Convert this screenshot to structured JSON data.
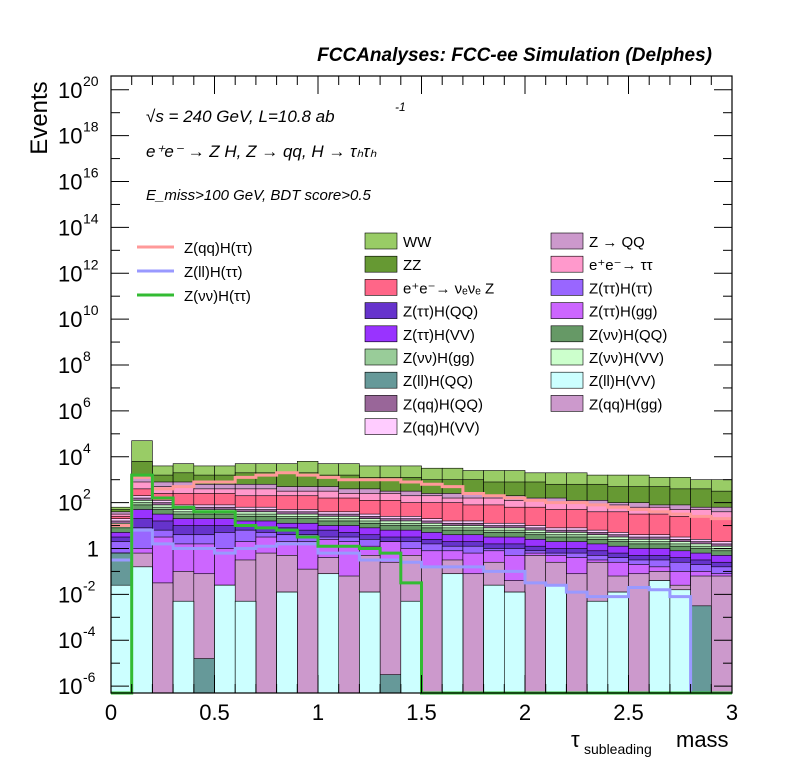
{
  "header": {
    "title": "FCCAnalyses: FCC-ee Simulation (Delphes)"
  },
  "annotations": {
    "line1": "√s = 240 GeV, L=10.8 ab",
    "line1_sup": "-1",
    "line2": "e⁺e⁻ → Z H, Z → qq, H → τₕτₕ",
    "line3": "E_miss>100 GeV, BDT score>0.5"
  },
  "colors": {
    "WW": "#99cc66",
    "ZZ": "#669933",
    "eeZ": "#ff6688",
    "Ztautau_Htautau": "#9966ff",
    "Ztautau_HQQ": "#6633cc",
    "Ztautau_Hgg": "#cc66ff",
    "Ztautau_HVV": "#9933ff",
    "Znunu_HQQ": "#669966",
    "Znunu_Hgg": "#99cc99",
    "Znunu_HVV": "#ccffcc",
    "Zll_HQQ": "#669999",
    "Zll_HVV": "#ccffff",
    "Zqq_HQQ": "#996699",
    "Zqq_Hgg": "#cc99cc",
    "Zqq_HVV": "#ffccff",
    "Z_QQ": "#cc99cc",
    "ee_tautau": "#ff99cc",
    "sig_qq": "#ff9999",
    "sig_ll": "#9999ff",
    "sig_nunu": "#33bb33"
  },
  "chart_data": {
    "type": "histogram-stacked",
    "xlabel": "τ_subleading mass",
    "xlabel_main": "τ",
    "xlabel_sub": "subleading",
    "xlabel_tail": "mass",
    "ylabel": "Events",
    "xlim": [
      0,
      3
    ],
    "ylim_log10": [
      -6.3,
      20.6
    ],
    "y_scale": "log",
    "x_ticks": [
      "0",
      "0.5",
      "1",
      "1.5",
      "2",
      "2.5",
      "3"
    ],
    "y_ticks": [
      {
        "base": "10",
        "exp": "20"
      },
      {
        "base": "10",
        "exp": "18"
      },
      {
        "base": "10",
        "exp": "16"
      },
      {
        "base": "10",
        "exp": "14"
      },
      {
        "base": "10",
        "exp": "12"
      },
      {
        "base": "10",
        "exp": "10"
      },
      {
        "base": "10",
        "exp": "8"
      },
      {
        "base": "10",
        "exp": "6"
      },
      {
        "base": "10",
        "exp": "4"
      },
      {
        "base": "10",
        "exp": "2"
      },
      {
        "base": "1",
        "exp": ""
      },
      {
        "base": "10",
        "exp": "-2"
      },
      {
        "base": "10",
        "exp": "-4"
      },
      {
        "base": "10",
        "exp": "-6"
      }
    ],
    "bin_edges": [
      0,
      0.1,
      0.2,
      0.3,
      0.4,
      0.5,
      0.6,
      0.7,
      0.8,
      0.9,
      1.0,
      1.1,
      1.2,
      1.3,
      1.4,
      1.5,
      1.6,
      1.7,
      1.8,
      1.9,
      2.0,
      2.1,
      2.2,
      2.3,
      2.4,
      2.5,
      2.6,
      2.7,
      2.8,
      2.9,
      3.0
    ],
    "stack_log10_tops": [
      {
        "name": "Z(ll)H(VV)",
        "color_key": "Zll_HVV",
        "values": [
          -1.6,
          -0.8,
          -6.5,
          -2.3,
          -6.5,
          -1.6,
          -2.3,
          -6.5,
          -1.9,
          -6.5,
          -1.1,
          -6.5,
          -1.9,
          -6.5,
          -2.3,
          -6.5,
          -1.1,
          -6.5,
          -1.6,
          -1.9,
          -6.5,
          -1.6,
          -6.5,
          -2.3,
          -1.9,
          -6.5,
          -1.4,
          -1.8,
          -6.5,
          -6.5
        ]
      },
      {
        "name": "Z(ll)H(QQ)",
        "color_key": "Zll_HQQ",
        "values": [
          -0.2,
          -0.8,
          -6.5,
          -2.3,
          -4.8,
          -1.6,
          -2.3,
          -6.5,
          -1.9,
          -6.5,
          -1.1,
          -6.5,
          -1.9,
          -5.5,
          -2.3,
          -6.5,
          -1.1,
          -6.5,
          -1.6,
          -1.9,
          -6.5,
          -1.6,
          -6.5,
          -2.3,
          -1.9,
          -6.5,
          -1.4,
          -1.8,
          -2.5,
          -6.5
        ]
      },
      {
        "name": "Z(qq)H(gg)",
        "color_key": "Zqq_Hgg",
        "values": [
          -0.2,
          -0.2,
          -1.5,
          -1.0,
          -1.1,
          -1.6,
          -0.5,
          -0.2,
          -0.3,
          -0.9,
          -0.4,
          -1.2,
          -0.3,
          -0.6,
          -0.3,
          -0.8,
          -0.5,
          -1.1,
          -0.6,
          -1.4,
          -0.3,
          -0.6,
          -1.1,
          -0.6,
          -1.2,
          -1.1,
          -1.0,
          -1.6,
          -1.2,
          -1.2
        ]
      },
      {
        "name": "Z(ττ)H(gg)",
        "color_key": "Ztautau_Hgg",
        "values": [
          -0.2,
          0.0,
          0.5,
          0.2,
          0.2,
          0.0,
          0.3,
          0.5,
          0.3,
          0.3,
          0.4,
          0.3,
          0.1,
          0.3,
          0.0,
          -0.1,
          -0.1,
          -0.2,
          -0.1,
          -0.3,
          -0.2,
          -0.3,
          -0.4,
          -0.5,
          -0.6,
          -0.7,
          -0.8,
          -1.0,
          -1.0,
          -1.1
        ]
      },
      {
        "name": "Z(ττ)H(ττ)",
        "color_key": "Ztautau_Htautau",
        "values": [
          0.3,
          0.9,
          0.8,
          0.6,
          0.6,
          0.7,
          0.8,
          0.7,
          0.6,
          0.6,
          0.5,
          0.5,
          0.4,
          0.3,
          0.3,
          0.2,
          0.1,
          0.1,
          0.0,
          0.0,
          -0.1,
          -0.2,
          -0.2,
          -0.3,
          -0.4,
          -0.5,
          -0.5,
          -0.6,
          -0.7,
          -0.8
        ]
      },
      {
        "name": "Z(ττ)H(QQ)",
        "color_key": "Ztautau_HQQ",
        "values": [
          0.5,
          1.3,
          1.2,
          1.0,
          1.0,
          1.0,
          1.0,
          0.9,
          0.9,
          0.8,
          0.8,
          0.7,
          0.6,
          0.5,
          0.5,
          0.4,
          0.3,
          0.3,
          0.2,
          0.2,
          0.1,
          0.0,
          0.0,
          -0.1,
          -0.2,
          -0.3,
          -0.3,
          -0.4,
          -0.5,
          -0.6
        ]
      },
      {
        "name": "Z(ττ)H(VV)",
        "color_key": "Ztautau_HVV",
        "values": [
          0.7,
          1.7,
          1.5,
          1.3,
          1.3,
          1.3,
          1.2,
          1.2,
          1.1,
          1.1,
          1.0,
          1.0,
          0.9,
          0.8,
          0.8,
          0.7,
          0.6,
          0.6,
          0.5,
          0.5,
          0.4,
          0.3,
          0.3,
          0.2,
          0.1,
          0.0,
          0.0,
          -0.1,
          -0.2,
          -0.3
        ]
      },
      {
        "name": "Z(νν)H(QQ)",
        "color_key": "Znunu_HQQ",
        "values": [
          0.9,
          1.9,
          1.7,
          1.5,
          1.5,
          1.5,
          1.4,
          1.4,
          1.3,
          1.3,
          1.2,
          1.2,
          1.1,
          1.0,
          1.0,
          0.9,
          0.8,
          0.8,
          0.7,
          0.7,
          0.6,
          0.5,
          0.5,
          0.4,
          0.3,
          0.2,
          0.2,
          0.1,
          0.0,
          -0.1
        ]
      },
      {
        "name": "Z(νν)H(gg)",
        "color_key": "Znunu_Hgg",
        "values": [
          1.0,
          2.0,
          1.8,
          1.6,
          1.6,
          1.6,
          1.5,
          1.5,
          1.4,
          1.4,
          1.3,
          1.3,
          1.2,
          1.1,
          1.1,
          1.0,
          0.9,
          0.9,
          0.8,
          0.8,
          0.7,
          0.6,
          0.6,
          0.5,
          0.4,
          0.3,
          0.3,
          0.2,
          0.1,
          0.0
        ]
      },
      {
        "name": "Z(νν)H(VV)",
        "color_key": "Znunu_HVV",
        "values": [
          1.1,
          2.1,
          1.9,
          1.7,
          1.7,
          1.7,
          1.6,
          1.6,
          1.5,
          1.5,
          1.4,
          1.4,
          1.3,
          1.2,
          1.2,
          1.1,
          1.0,
          1.0,
          0.9,
          0.9,
          0.8,
          0.7,
          0.7,
          0.6,
          0.5,
          0.4,
          0.4,
          0.3,
          0.2,
          0.1
        ]
      },
      {
        "name": "Z(qq)H(QQ)",
        "color_key": "Zqq_HQQ",
        "values": [
          1.2,
          2.2,
          2.0,
          1.8,
          1.8,
          1.8,
          1.7,
          1.7,
          1.6,
          1.6,
          1.5,
          1.5,
          1.4,
          1.3,
          1.3,
          1.2,
          1.1,
          1.1,
          1.0,
          1.0,
          0.9,
          0.8,
          0.8,
          0.7,
          0.6,
          0.5,
          0.5,
          0.4,
          0.3,
          0.2
        ]
      },
      {
        "name": "Z(qq)H(VV)",
        "color_key": "Zqq_HVV",
        "values": [
          1.3,
          2.3,
          2.1,
          1.9,
          1.9,
          1.9,
          1.8,
          1.8,
          1.7,
          1.7,
          1.6,
          1.6,
          1.5,
          1.4,
          1.4,
          1.3,
          1.2,
          1.2,
          1.1,
          1.1,
          1.0,
          0.9,
          0.9,
          0.8,
          0.7,
          0.6,
          0.6,
          0.5,
          0.4,
          0.3
        ]
      },
      {
        "name": "e⁺e⁻→ νₑνₑ Z",
        "color_key": "eeZ",
        "values": [
          1.4,
          2.6,
          2.4,
          2.4,
          2.4,
          2.4,
          2.3,
          2.3,
          2.3,
          2.3,
          2.2,
          2.2,
          2.1,
          2.1,
          2.0,
          2.0,
          2.0,
          1.9,
          1.9,
          1.8,
          1.8,
          1.7,
          1.7,
          1.6,
          1.6,
          1.5,
          1.5,
          1.4,
          1.4,
          1.3
        ]
      },
      {
        "name": "e⁺e⁻→ ττ",
        "color_key": "ee_tautau",
        "values": [
          1.5,
          2.9,
          2.7,
          2.7,
          2.6,
          2.6,
          2.6,
          2.6,
          2.5,
          2.5,
          2.5,
          2.4,
          2.4,
          2.4,
          2.3,
          2.3,
          2.2,
          2.2,
          2.2,
          2.1,
          2.1,
          2.0,
          2.0,
          1.9,
          1.9,
          1.8,
          1.8,
          1.7,
          1.7,
          1.6
        ]
      },
      {
        "name": "Z → QQ",
        "color_key": "Z_QQ",
        "values": [
          1.6,
          3.1,
          2.9,
          2.9,
          2.8,
          2.8,
          2.8,
          2.8,
          2.7,
          2.7,
          2.7,
          2.6,
          2.6,
          2.5,
          2.5,
          2.4,
          2.4,
          2.4,
          2.3,
          2.3,
          2.2,
          2.2,
          2.1,
          2.1,
          2.0,
          2.0,
          1.9,
          1.9,
          1.8,
          1.8
        ]
      },
      {
        "name": "ZZ",
        "color_key": "ZZ",
        "values": [
          1.7,
          3.8,
          3.2,
          3.3,
          3.2,
          3.2,
          3.3,
          3.3,
          3.3,
          3.3,
          3.2,
          3.2,
          3.1,
          3.1,
          3.1,
          3.0,
          3.0,
          3.0,
          2.9,
          2.9,
          2.9,
          2.8,
          2.8,
          2.8,
          2.7,
          2.7,
          2.7,
          2.6,
          2.6,
          2.5
        ]
      },
      {
        "name": "WW",
        "color_key": "WW",
        "values": [
          1.8,
          4.7,
          3.6,
          3.7,
          3.6,
          3.6,
          3.7,
          3.7,
          3.7,
          3.8,
          3.7,
          3.7,
          3.6,
          3.6,
          3.6,
          3.5,
          3.5,
          3.4,
          3.4,
          3.4,
          3.3,
          3.3,
          3.3,
          3.2,
          3.2,
          3.2,
          3.1,
          3.1,
          3.0,
          3.0
        ]
      }
    ],
    "signal_lines_log10": [
      {
        "name": "Z(qq)H(ττ)",
        "color_key": "sig_qq",
        "values": [
          1.0,
          3.1,
          2.6,
          2.7,
          2.9,
          2.9,
          3.1,
          3.2,
          3.3,
          3.2,
          3.1,
          3.0,
          3.0,
          3.0,
          2.9,
          2.8,
          2.7,
          2.4,
          2.3,
          2.2,
          2.1,
          2.0,
          2.0,
          1.9,
          1.8,
          1.7,
          1.6,
          1.5,
          1.4,
          1.3
        ]
      },
      {
        "name": "Z(ll)H(ττ)",
        "color_key": "sig_ll",
        "values": [
          -0.5,
          0.8,
          0.2,
          0.0,
          0.0,
          -0.2,
          0.0,
          0.1,
          0.2,
          0.2,
          -0.2,
          -0.2,
          -0.5,
          -0.5,
          -0.6,
          -0.8,
          -0.8,
          -0.8,
          -1.0,
          -1.0,
          -1.5,
          -1.6,
          -1.9,
          -2.1,
          -2.1,
          -1.7,
          -1.8,
          -2.1,
          -6.5,
          -6.5
        ]
      },
      {
        "name": "Z(νν)H(ττ)",
        "color_key": "sig_nunu",
        "values": [
          -6.5,
          3.2,
          2.2,
          1.8,
          1.6,
          1.6,
          1.0,
          0.9,
          0.8,
          0.5,
          0.1,
          0.1,
          0.0,
          -0.2,
          -1.5,
          -6.5,
          -6.5,
          -6.5,
          -6.5,
          -6.5,
          -6.5,
          -6.5,
          -6.5,
          -6.5,
          -6.5,
          -6.5,
          -6.5,
          -6.5,
          -6.5,
          -6.5
        ]
      }
    ],
    "legend_left": [
      {
        "label": "Z(qq)H(ττ)",
        "color_key": "sig_qq"
      },
      {
        "label": "Z(ll)H(ττ)",
        "color_key": "sig_ll"
      },
      {
        "label": "Z(νν)H(ττ)",
        "color_key": "sig_nunu"
      }
    ],
    "legend_mid": [
      {
        "label": "WW",
        "color_key": "WW"
      },
      {
        "label": "ZZ",
        "color_key": "ZZ"
      },
      {
        "label": "e⁺e⁻→ νₑνₑ Z",
        "color_key": "eeZ"
      },
      {
        "label": "Z(ττ)H(QQ)",
        "color_key": "Ztautau_HQQ"
      },
      {
        "label": "Z(ττ)H(VV)",
        "color_key": "Ztautau_HVV"
      },
      {
        "label": "Z(νν)H(gg)",
        "color_key": "Znunu_Hgg"
      },
      {
        "label": "Z(ll)H(QQ)",
        "color_key": "Zll_HQQ"
      },
      {
        "label": "Z(qq)H(QQ)",
        "color_key": "Zqq_HQQ"
      },
      {
        "label": "Z(qq)H(VV)",
        "color_key": "Zqq_HVV"
      }
    ],
    "legend_right": [
      {
        "label": "Z → QQ",
        "color_key": "Z_QQ"
      },
      {
        "label": "e⁺e⁻→ ττ",
        "color_key": "ee_tautau"
      },
      {
        "label": "Z(ττ)H(ττ)",
        "color_key": "Ztautau_Htautau"
      },
      {
        "label": "Z(ττ)H(gg)",
        "color_key": "Ztautau_Hgg"
      },
      {
        "label": "Z(νν)H(QQ)",
        "color_key": "Znunu_HQQ"
      },
      {
        "label": "Z(νν)H(VV)",
        "color_key": "Znunu_HVV"
      },
      {
        "label": "Z(ll)H(VV)",
        "color_key": "Zll_HVV"
      },
      {
        "label": "Z(qq)H(gg)",
        "color_key": "Zqq_Hgg"
      }
    ]
  }
}
